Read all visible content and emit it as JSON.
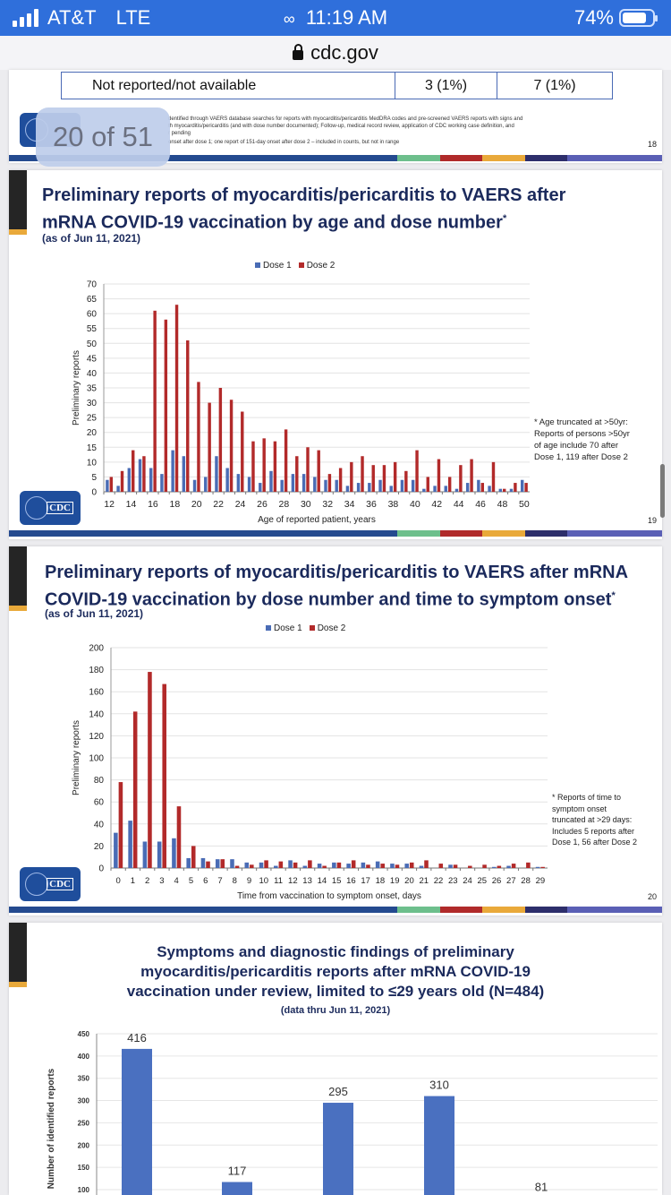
{
  "status_bar": {
    "carrier": "AT&T",
    "network": "LTE",
    "time": "11:19 AM",
    "battery": "74%",
    "battery_level": 0.74,
    "signal_bars": 4
  },
  "url_bar": {
    "domain": "cdc.gov"
  },
  "page_indicator": {
    "text": "20 of 51"
  },
  "colors": {
    "dose1": "#4a6cb5",
    "dose2": "#b22a2a",
    "bar": "#4a70c0",
    "title": "#1b2a5c",
    "stripe": [
      "#244a8f",
      "#6dbf8c",
      "#b02a2a",
      "#e9a93a",
      "#2d2e6b",
      "#5a5fb5"
    ]
  },
  "slide18": {
    "table_row": {
      "label": "Not reported/not available",
      "col1": "3 (1%)",
      "col2": "7 (1%)"
    },
    "footnotes": [
      "dentified through VAERS database searches for reports with myocarditis/pericarditis MedDRA codes and pre-screened VAERS reports with signs and",
      "th myocarditis/pericarditis (and with dose number documented); Follow-up, medical record review, application of CDC working case definition, and",
      "r pending",
      "onset after dose 1; one report of 151-day onset after dose 2 – included  in counts, but not in range"
    ],
    "page_number": "18"
  },
  "slide19": {
    "title_line1": "Preliminary reports of myocarditis/pericarditis to VAERS after",
    "title_line2": "mRNA COVID-19 vaccination by age and dose number",
    "title_mark": "*",
    "subtitle": "(as of Jun 11, 2021)",
    "note": [
      "* Age truncated at >50yr:",
      "Reports of persons >50yr",
      "of age include 70 after",
      "Dose 1, 119 after Dose 2"
    ],
    "page_number": "19",
    "logo": "CDC"
  },
  "slide20": {
    "title_line1": "Preliminary reports of myocarditis/pericarditis to VAERS after mRNA",
    "title_line2": "COVID-19 vaccination by dose number and time to symptom onset",
    "title_mark": "*",
    "subtitle": "(as of Jun 11, 2021)",
    "note": [
      "* Reports of time to",
      "symptom onset",
      "truncated at >29 days:",
      "Includes 5 reports after",
      "Dose 1, 56 after Dose 2"
    ],
    "page_number": "20",
    "logo": "CDC"
  },
  "slide21": {
    "title_lines": [
      "Symptoms and diagnostic findings of preliminary",
      "myocarditis/pericarditis reports after mRNA COVID-19",
      "vaccination under review, limited to ≤29 years old (N=484)"
    ],
    "subtitle": "(data thru Jun 11, 2021)"
  },
  "chart_data": [
    {
      "type": "bar",
      "title": "Preliminary reports of myocarditis/pericarditis to VAERS after mRNA COVID-19 vaccination by age and dose number",
      "xlabel": "Age of reported patient, years",
      "ylabel": "Preliminary reports",
      "ylim": [
        0,
        70
      ],
      "yticks": [
        0,
        5,
        10,
        15,
        20,
        25,
        30,
        35,
        40,
        45,
        50,
        55,
        60,
        65,
        70
      ],
      "xtick_labels": [
        "12",
        "14",
        "16",
        "18",
        "20",
        "22",
        "24",
        "26",
        "28",
        "30",
        "32",
        "34",
        "36",
        "38",
        "40",
        "42",
        "44",
        "46",
        "48",
        "50"
      ],
      "legend": "top-center",
      "grid": true,
      "categories": [
        12,
        13,
        14,
        15,
        16,
        17,
        18,
        19,
        20,
        21,
        22,
        23,
        24,
        25,
        26,
        27,
        28,
        29,
        30,
        31,
        32,
        33,
        34,
        35,
        36,
        37,
        38,
        39,
        40,
        41,
        42,
        43,
        44,
        45,
        46,
        47,
        48,
        49,
        50
      ],
      "series": [
        {
          "name": "Dose 1",
          "values": [
            4,
            2,
            8,
            11,
            8,
            6,
            14,
            12,
            4,
            5,
            12,
            8,
            6,
            5,
            3,
            7,
            4,
            6,
            6,
            5,
            4,
            4,
            2,
            3,
            3,
            4,
            2,
            4,
            4,
            1,
            2,
            2,
            1,
            3,
            4,
            2,
            1,
            1,
            4
          ]
        },
        {
          "name": "Dose 2",
          "values": [
            5,
            7,
            14,
            12,
            61,
            58,
            63,
            51,
            37,
            30,
            35,
            31,
            27,
            17,
            18,
            17,
            21,
            12,
            15,
            14,
            6,
            8,
            10,
            12,
            9,
            9,
            10,
            7,
            14,
            5,
            11,
            5,
            9,
            11,
            3,
            10,
            1,
            3,
            3
          ]
        }
      ]
    },
    {
      "type": "bar",
      "title": "Preliminary reports of myocarditis/pericarditis to VAERS after mRNA COVID-19 vaccination by dose number and time to symptom onset",
      "xlabel": "Time from vaccination to symptom onset, days",
      "ylabel": "Preliminary reports",
      "ylim": [
        0,
        200
      ],
      "yticks": [
        0,
        20,
        40,
        60,
        80,
        100,
        120,
        140,
        160,
        180,
        200
      ],
      "legend": "top-center",
      "grid": true,
      "categories": [
        0,
        1,
        2,
        3,
        4,
        5,
        6,
        7,
        8,
        9,
        10,
        11,
        12,
        13,
        14,
        15,
        16,
        17,
        18,
        19,
        20,
        21,
        22,
        23,
        24,
        25,
        26,
        27,
        28,
        29
      ],
      "series": [
        {
          "name": "Dose 1",
          "values": [
            32,
            43,
            24,
            24,
            27,
            9,
            9,
            8,
            8,
            5,
            5,
            2,
            7,
            2,
            4,
            5,
            4,
            5,
            6,
            4,
            4,
            2,
            0,
            3,
            0,
            0,
            1,
            2,
            0,
            1
          ]
        },
        {
          "name": "Dose 2",
          "values": [
            78,
            142,
            178,
            167,
            56,
            20,
            6,
            8,
            2,
            3,
            7,
            6,
            5,
            7,
            2,
            5,
            7,
            3,
            4,
            3,
            5,
            7,
            4,
            3,
            2,
            3,
            2,
            4,
            5,
            1
          ]
        }
      ]
    },
    {
      "type": "bar",
      "title": "Symptoms and diagnostic findings of preliminary myocarditis/pericarditis reports after mRNA COVID-19 vaccination under review, limited to ≤29 years old (N=484)",
      "ylabel": "Number of identified reports",
      "ylim": [
        0,
        450
      ],
      "yticks_visible": [
        100,
        150,
        200,
        250,
        300,
        350,
        400,
        450
      ],
      "grid": true,
      "values": [
        416,
        117,
        295,
        310,
        81
      ],
      "data_labels": [
        "416",
        "117",
        "295",
        "310",
        "81"
      ]
    }
  ]
}
